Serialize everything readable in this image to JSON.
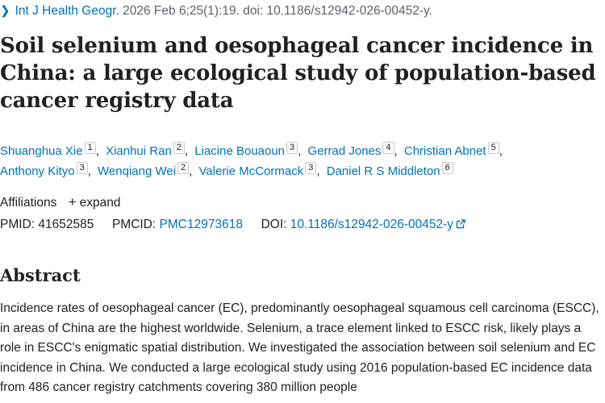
{
  "citation": {
    "journal": "Int J Health Geogr.",
    "details": "2026 Feb 6;25(1):19. doi: 10.1186/s12942-026-00452-y."
  },
  "title": "Soil selenium and oesophageal cancer incidence in China: a large ecological study of population-based cancer registry data",
  "authors": [
    {
      "name": "Shuanghua Xie",
      "aff": "1"
    },
    {
      "name": "Xianhui Ran",
      "aff": "2"
    },
    {
      "name": "Liacine Bouaoun",
      "aff": "3"
    },
    {
      "name": "Gerrad Jones",
      "aff": "4"
    },
    {
      "name": "Christian Abnet",
      "aff": "5"
    },
    {
      "name": "Anthony Kityo",
      "aff": "3"
    },
    {
      "name": "Wenqiang Wei",
      "aff": "2"
    },
    {
      "name": "Valerie McCormack",
      "aff": "3"
    },
    {
      "name": "Daniel R S Middleton",
      "aff": "6"
    }
  ],
  "affiliations": {
    "label": "Affiliations",
    "expand_label": "expand"
  },
  "identifiers": {
    "pmid_label": "PMID:",
    "pmid": "41652585",
    "pmcid_label": "PMCID:",
    "pmcid": "PMC12973618",
    "doi_label": "DOI:",
    "doi": "10.1186/s12942-026-00452-y"
  },
  "abstract": {
    "heading": "Abstract",
    "text": "Incidence rates of oesophageal cancer (EC), predominantly oesophageal squamous cell carcinoma (ESCC), in areas of China are the highest worldwide. Selenium, a trace element linked to ESCC risk, likely plays a role in ESCC's enigmatic spatial distribution. We investigated the association between soil selenium and EC incidence in China. We conducted a large ecological study using 2016 population-based EC incidence data from 486 cancer registry catchments covering 380 million people"
  },
  "icons": {
    "chevron": "chevron-right-icon",
    "expand": "plus-icon",
    "external": "external-link-icon"
  }
}
